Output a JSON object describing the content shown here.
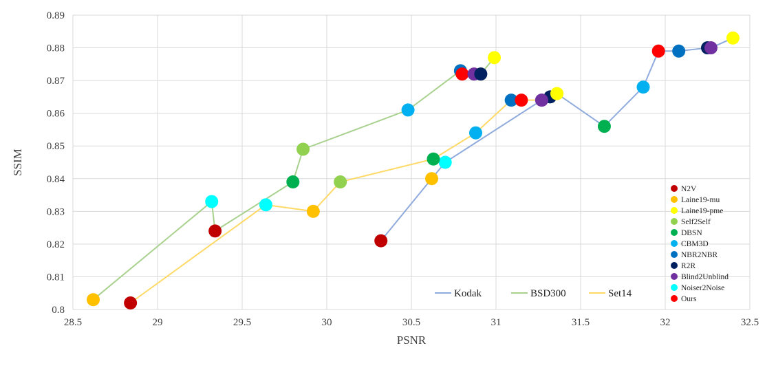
{
  "chart_data": {
    "type": "scatter",
    "xlabel": "PSNR",
    "ylabel": "SSIM",
    "xlim": [
      28.5,
      32.5
    ],
    "ylim": [
      0.8,
      0.89
    ],
    "x_ticks": [
      "28.5",
      "29",
      "29.5",
      "30",
      "30.5",
      "31",
      "31.5",
      "32",
      "32.5"
    ],
    "y_ticks": [
      "0.8",
      "0.81",
      "0.82",
      "0.83",
      "0.84",
      "0.85",
      "0.86",
      "0.87",
      "0.88",
      "0.89"
    ],
    "grid": true,
    "methods": [
      {
        "name": "N2V",
        "color": "#c00000"
      },
      {
        "name": "Laine19-mu",
        "color": "#ffc000"
      },
      {
        "name": "Laine19-pme",
        "color": "#ffff00"
      },
      {
        "name": "Self2Self",
        "color": "#92d050"
      },
      {
        "name": "DBSN",
        "color": "#00b050"
      },
      {
        "name": "CBM3D",
        "color": "#00b0f0"
      },
      {
        "name": "NBR2NBR",
        "color": "#0070c0"
      },
      {
        "name": "R2R",
        "color": "#002060"
      },
      {
        "name": "Blind2Unblind",
        "color": "#7030a0"
      },
      {
        "name": "Noiser2Noise",
        "color": "#00ffff"
      },
      {
        "name": "Ours",
        "color": "#ff0000"
      }
    ],
    "series": [
      {
        "name": "Kodak",
        "line_color": "#8faadc",
        "points": [
          {
            "method": "N2V",
            "x": 30.32,
            "y": 0.821
          },
          {
            "method": "Laine19-mu",
            "x": 30.62,
            "y": 0.84
          },
          {
            "method": "Noiser2Noise",
            "x": 30.7,
            "y": 0.845
          },
          {
            "method": "Blind2Unblind",
            "x": 31.27,
            "y": 0.864
          },
          {
            "method": "R2R",
            "x": 31.32,
            "y": 0.865
          },
          {
            "method": "Laine19-pme",
            "x": 31.36,
            "y": 0.866
          },
          {
            "method": "DBSN",
            "x": 31.64,
            "y": 0.856
          },
          {
            "method": "CBM3D",
            "x": 31.87,
            "y": 0.868
          },
          {
            "method": "Ours",
            "x": 31.96,
            "y": 0.879
          },
          {
            "method": "NBR2NBR",
            "x": 32.08,
            "y": 0.879
          },
          {
            "method": "R2R",
            "x": 32.25,
            "y": 0.88
          },
          {
            "method": "Blind2Unblind",
            "x": 32.27,
            "y": 0.88
          },
          {
            "method": "Laine19-pme",
            "x": 32.4,
            "y": 0.883
          }
        ]
      },
      {
        "name": "BSD300",
        "line_color": "#a9d18e",
        "points": [
          {
            "method": "Laine19-mu",
            "x": 28.62,
            "y": 0.803
          },
          {
            "method": "Noiser2Noise",
            "x": 29.32,
            "y": 0.833
          },
          {
            "method": "N2V",
            "x": 29.34,
            "y": 0.824
          },
          {
            "method": "DBSN",
            "x": 29.8,
            "y": 0.839
          },
          {
            "method": "Self2Self",
            "x": 29.86,
            "y": 0.849
          },
          {
            "method": "CBM3D",
            "x": 30.48,
            "y": 0.861
          },
          {
            "method": "NBR2NBR",
            "x": 30.79,
            "y": 0.873
          },
          {
            "method": "Ours",
            "x": 30.8,
            "y": 0.872
          },
          {
            "method": "Blind2Unblind",
            "x": 30.87,
            "y": 0.872
          },
          {
            "method": "R2R",
            "x": 30.91,
            "y": 0.872
          },
          {
            "method": "Laine19-pme",
            "x": 30.99,
            "y": 0.877
          }
        ]
      },
      {
        "name": "Set14",
        "line_color": "#ffd966",
        "points": [
          {
            "method": "N2V",
            "x": 28.84,
            "y": 0.802
          },
          {
            "method": "Noiser2Noise",
            "x": 29.64,
            "y": 0.832
          },
          {
            "method": "Laine19-mu",
            "x": 29.92,
            "y": 0.83
          },
          {
            "method": "Self2Self",
            "x": 30.08,
            "y": 0.839
          },
          {
            "method": "DBSN",
            "x": 30.63,
            "y": 0.846
          },
          {
            "method": "CBM3D",
            "x": 30.88,
            "y": 0.854
          },
          {
            "method": "NBR2NBR",
            "x": 31.09,
            "y": 0.864
          },
          {
            "method": "Ours",
            "x": 31.15,
            "y": 0.864
          },
          {
            "method": "Blind2Unblind",
            "x": 31.27,
            "y": 0.864
          },
          {
            "method": "Laine19-pme",
            "x": 31.36,
            "y": 0.866
          }
        ]
      }
    ]
  }
}
